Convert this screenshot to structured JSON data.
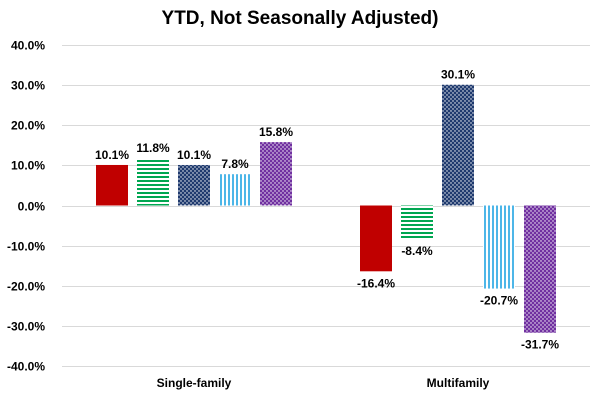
{
  "chart_data": {
    "type": "bar",
    "title_lines": [
      "",
      "YTD, Not Seasonally Adjusted)"
    ],
    "categories": [
      "Single-family",
      "Multifamily"
    ],
    "series": [
      {
        "color": "#c00000",
        "pattern": "solid",
        "values": [
          10.1,
          -16.4
        ]
      },
      {
        "color": "#00a651",
        "pattern": "horizontal-stripes",
        "values": [
          11.8,
          -8.4
        ]
      },
      {
        "color": "#1f3a6e",
        "pattern": "dots",
        "values": [
          10.1,
          30.1
        ]
      },
      {
        "color": "#4db6e8",
        "pattern": "vertical-stripes",
        "values": [
          7.8,
          -20.7
        ]
      },
      {
        "color": "#7030a0",
        "pattern": "dots",
        "values": [
          15.8,
          -31.7
        ]
      }
    ],
    "data_labels": [
      [
        "10.1%",
        "-16.4%"
      ],
      [
        "11.8%",
        "-8.4%"
      ],
      [
        "10.1%",
        "30.1%"
      ],
      [
        "7.8%",
        "-20.7%"
      ],
      [
        "15.8%",
        "-31.7%"
      ]
    ],
    "yticks": [
      40,
      30,
      20,
      10,
      0,
      -10,
      -20,
      -30,
      -40
    ],
    "ytick_labels": [
      "40.0%",
      "30.0%",
      "20.0%",
      "10.0%",
      "0.0%",
      "-10.0%",
      "-20.0%",
      "-30.0%",
      "-40.0%"
    ],
    "ylim": [
      -40,
      40
    ],
    "grid": true,
    "legend": "none"
  }
}
